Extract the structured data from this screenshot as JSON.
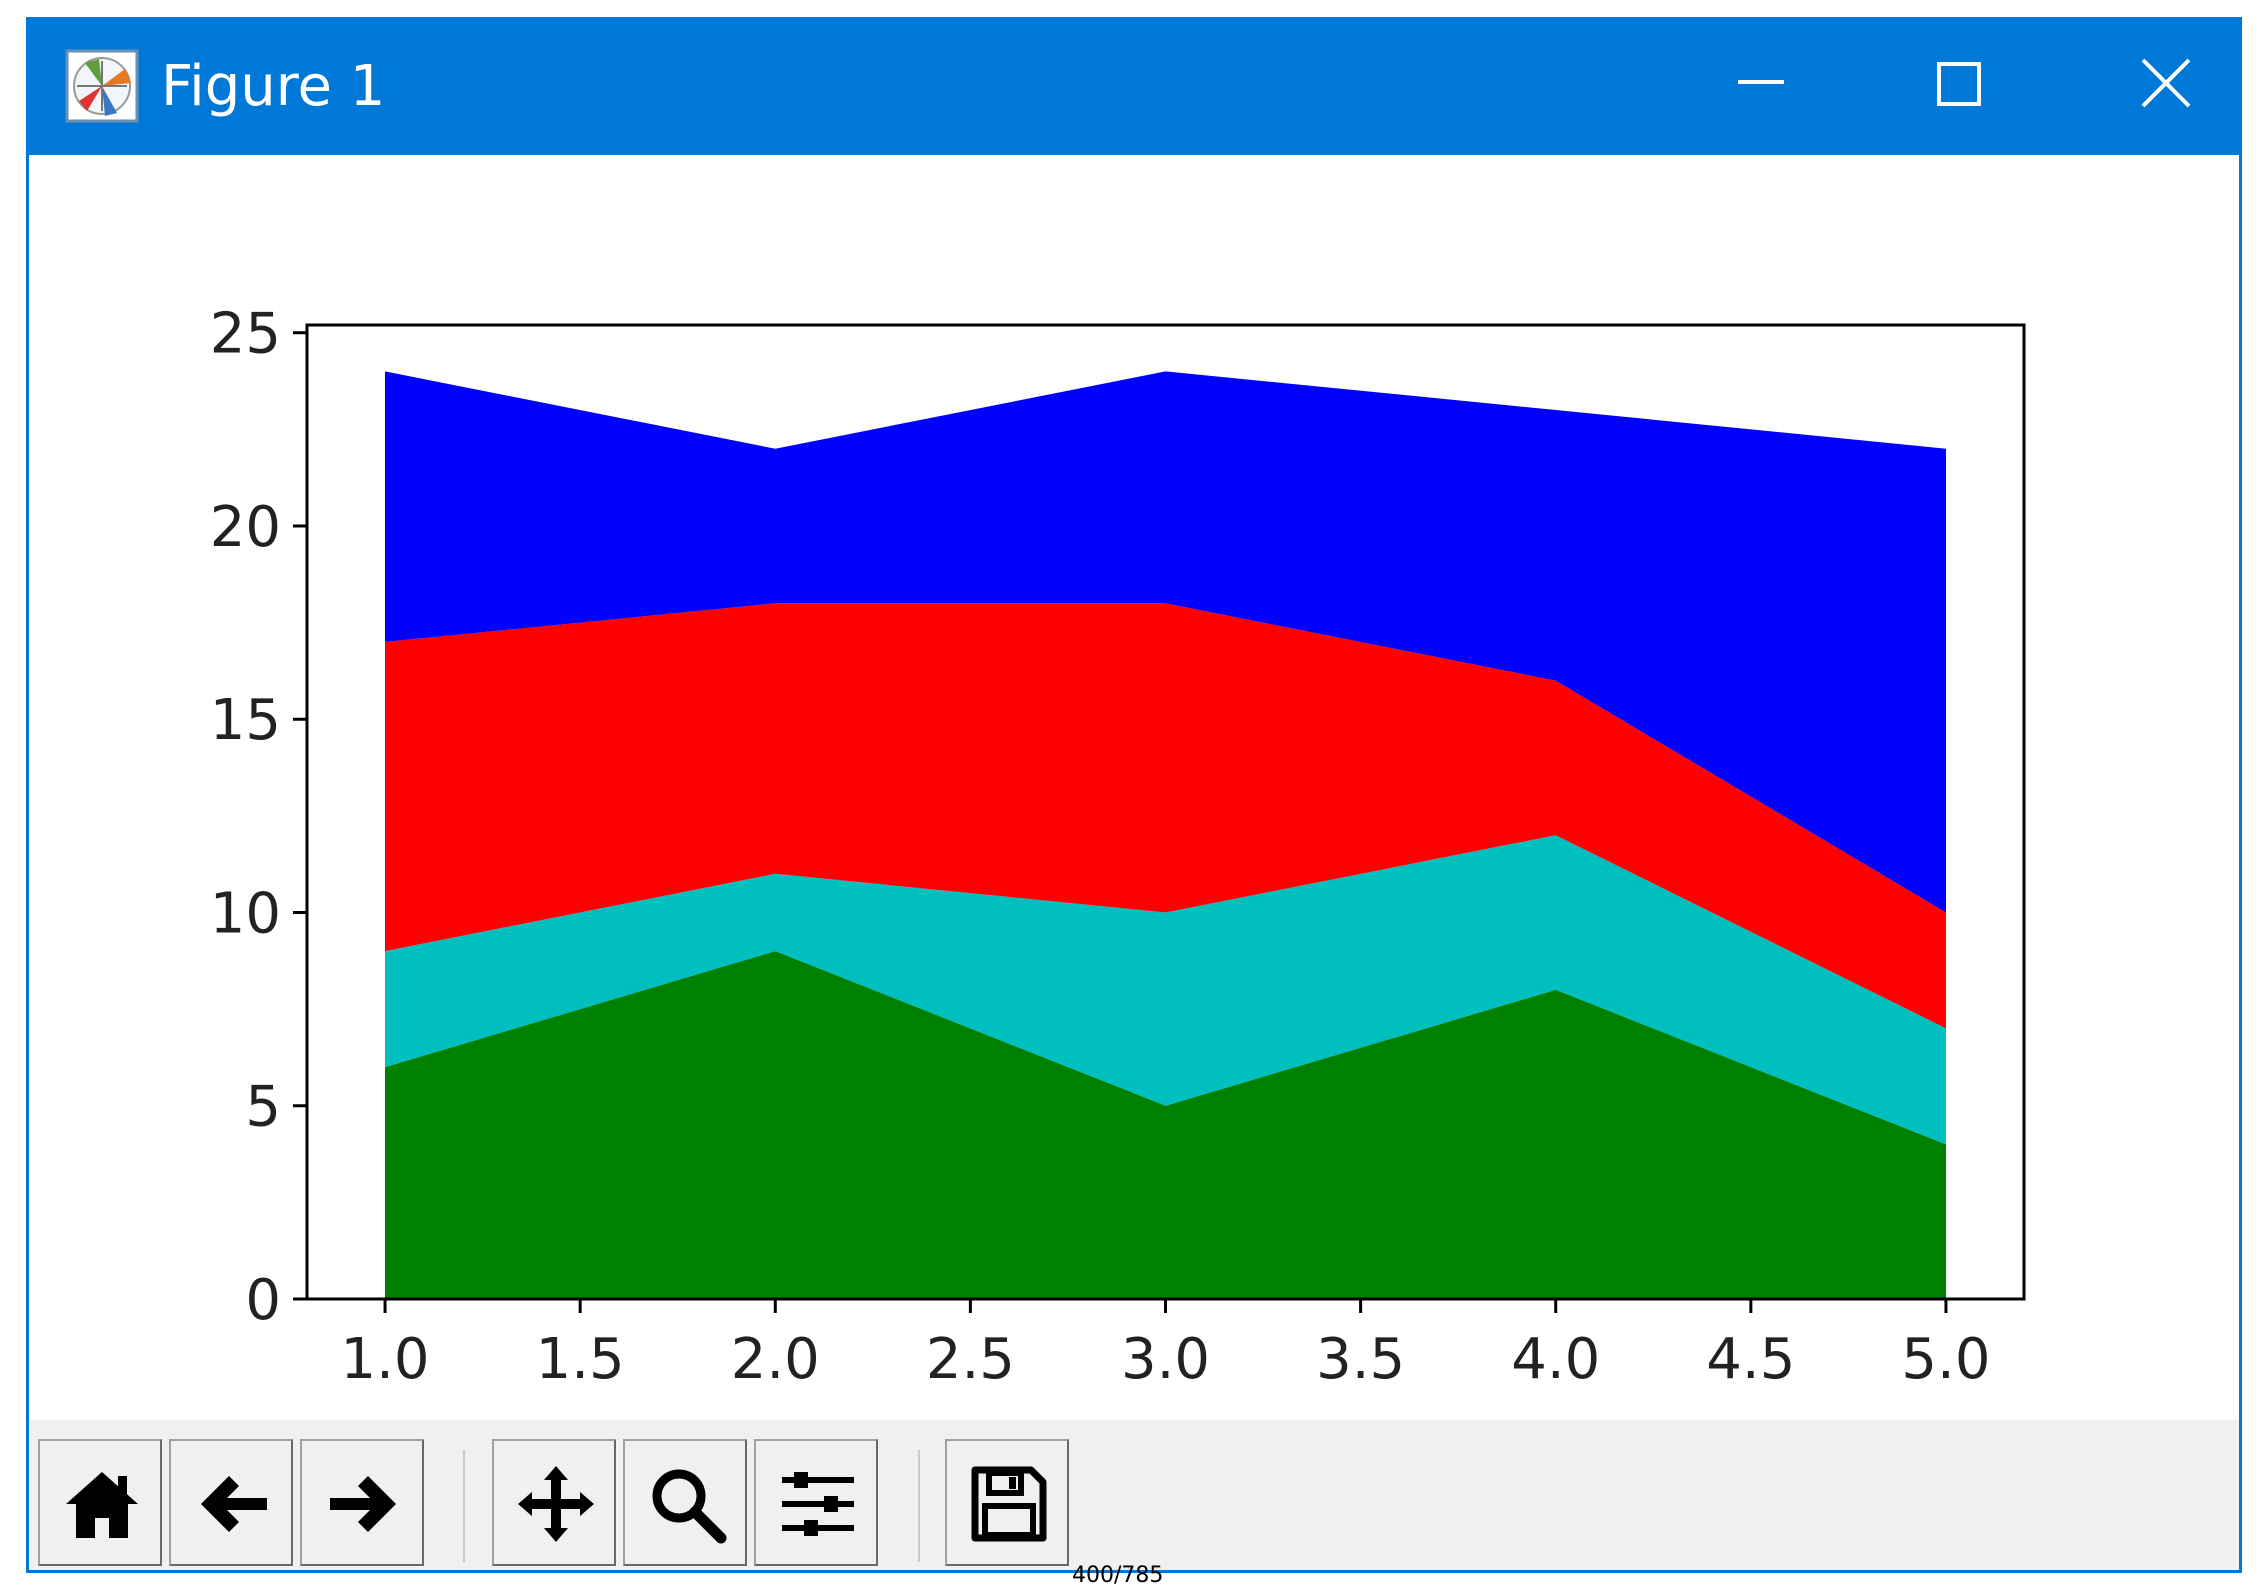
{
  "window": {
    "title": "Figure 1",
    "colors": {
      "titlebar": "#0078d7",
      "toolbar": "#f0f0f0"
    },
    "controls": {
      "minimize": "minimize-icon",
      "maximize": "maximize-icon",
      "close": "close-icon"
    }
  },
  "toolbar": {
    "tools": [
      {
        "icon": "home-icon"
      },
      {
        "icon": "back-arrow-icon"
      },
      {
        "icon": "forward-arrow-icon"
      },
      {
        "icon": "pan-icon"
      },
      {
        "icon": "zoom-icon"
      },
      {
        "icon": "subplots-configure-icon"
      },
      {
        "icon": "save-icon"
      }
    ]
  },
  "status": {
    "text": "400/785"
  },
  "chart_data": {
    "type": "area",
    "stacked": true,
    "x": [
      1,
      2,
      3,
      4,
      5
    ],
    "series": [
      {
        "color": "#008000",
        "values": [
          6,
          9,
          5,
          8,
          4
        ]
      },
      {
        "color": "#00bfbf",
        "values": [
          3,
          2,
          5,
          4,
          3
        ]
      },
      {
        "color": "#ff0000",
        "values": [
          8,
          7,
          8,
          4,
          3
        ]
      },
      {
        "color": "#0000ff",
        "values": [
          7,
          4,
          6,
          7,
          12
        ]
      }
    ],
    "xlim": [
      0.8,
      5.2
    ],
    "ylim": [
      0,
      25.2
    ],
    "xticks": [
      "1.0",
      "1.5",
      "2.0",
      "2.5",
      "3.0",
      "3.5",
      "4.0",
      "4.5",
      "5.0"
    ],
    "yticks": [
      "0",
      "5",
      "10",
      "15",
      "20",
      "25"
    ],
    "title": "",
    "xlabel": "",
    "ylabel": "",
    "grid": false,
    "legend": false
  }
}
